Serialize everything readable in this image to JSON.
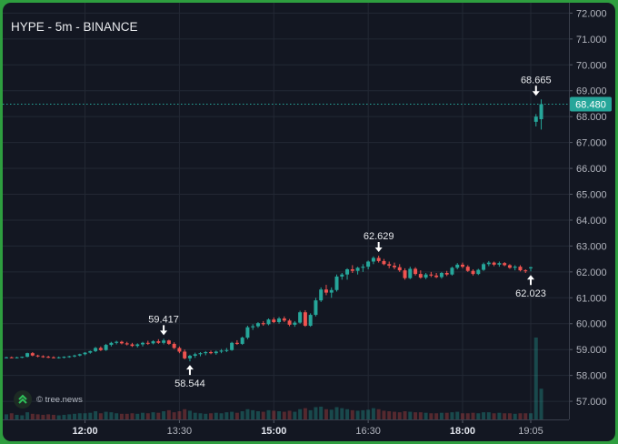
{
  "header": {
    "title": "HYPE - 5m - BINANCE"
  },
  "watermark": {
    "text": "© tree.news",
    "icon": "tree-news-logo-icon"
  },
  "colors": {
    "up": "#26a69a",
    "down": "#ef5350",
    "grid": "#232834",
    "axis_text": "#b2b5be",
    "price_line": "#26a69a",
    "background": "#131722"
  },
  "chart_data": {
    "type": "candlestick",
    "symbol": "HYPE",
    "interval": "5m",
    "exchange": "BINANCE",
    "ylim": [
      56.3,
      72.4
    ],
    "y_ticks": [
      "57.000",
      "58.000",
      "59.000",
      "60.000",
      "61.000",
      "62.000",
      "63.000",
      "64.000",
      "65.000",
      "66.000",
      "67.000",
      "68.000",
      "69.000",
      "70.000",
      "71.000",
      "72.000"
    ],
    "x_ticks": [
      {
        "label": "12:00",
        "index": 15,
        "bold": true
      },
      {
        "label": "13:30",
        "index": 33,
        "bold": false
      },
      {
        "label": "15:00",
        "index": 51,
        "bold": true
      },
      {
        "label": "16:30",
        "index": 69,
        "bold": false
      },
      {
        "label": "18:00",
        "index": 87,
        "bold": true
      },
      {
        "label": "19:05",
        "index": 100,
        "bold": false
      }
    ],
    "last_price": "68.480",
    "annotations": [
      {
        "label": "59.417",
        "index": 30,
        "direction": "down",
        "value": 59.417
      },
      {
        "label": "58.544",
        "index": 35,
        "direction": "up",
        "value": 58.544
      },
      {
        "label": "62.629",
        "index": 71,
        "direction": "down",
        "value": 62.629
      },
      {
        "label": "62.023",
        "index": 100,
        "direction": "up",
        "value": 62.023
      },
      {
        "label": "68.665",
        "index": 101,
        "direction": "down",
        "value": 68.665
      }
    ],
    "candles": [
      [
        58.7,
        58.72,
        58.66,
        58.7
      ],
      [
        58.7,
        58.73,
        58.67,
        58.69
      ],
      [
        58.69,
        58.72,
        58.66,
        58.7
      ],
      [
        58.7,
        58.73,
        58.67,
        58.72
      ],
      [
        58.72,
        58.88,
        58.7,
        58.86
      ],
      [
        58.86,
        58.9,
        58.74,
        58.77
      ],
      [
        58.77,
        58.8,
        58.7,
        58.74
      ],
      [
        58.74,
        58.78,
        58.68,
        58.72
      ],
      [
        58.72,
        58.76,
        58.67,
        58.7
      ],
      [
        58.7,
        58.74,
        58.66,
        58.69
      ],
      [
        58.69,
        58.73,
        58.65,
        58.7
      ],
      [
        58.7,
        58.74,
        58.66,
        58.72
      ],
      [
        58.72,
        58.76,
        58.68,
        58.74
      ],
      [
        58.74,
        58.8,
        58.7,
        58.77
      ],
      [
        58.77,
        58.84,
        58.74,
        58.82
      ],
      [
        58.82,
        58.9,
        58.78,
        58.88
      ],
      [
        58.88,
        58.96,
        58.84,
        58.94
      ],
      [
        58.94,
        59.1,
        58.9,
        59.06
      ],
      [
        59.06,
        59.12,
        58.94,
        58.98
      ],
      [
        58.98,
        59.22,
        58.95,
        59.18
      ],
      [
        59.18,
        59.3,
        59.12,
        59.26
      ],
      [
        59.26,
        59.34,
        59.2,
        59.3
      ],
      [
        59.3,
        59.34,
        59.2,
        59.24
      ],
      [
        59.24,
        59.3,
        59.16,
        59.2
      ],
      [
        59.2,
        59.26,
        59.1,
        59.14
      ],
      [
        59.14,
        59.24,
        59.08,
        59.2
      ],
      [
        59.2,
        59.3,
        59.12,
        59.26
      ],
      [
        59.26,
        59.34,
        59.18,
        59.24
      ],
      [
        59.24,
        59.36,
        59.2,
        59.32
      ],
      [
        59.32,
        59.4,
        59.22,
        59.26
      ],
      [
        59.26,
        59.417,
        59.2,
        59.35
      ],
      [
        59.35,
        59.38,
        59.18,
        59.22
      ],
      [
        59.22,
        59.28,
        59.02,
        59.06
      ],
      [
        59.06,
        59.12,
        58.86,
        58.92
      ],
      [
        58.92,
        59.0,
        58.62,
        58.66
      ],
      [
        58.66,
        58.8,
        58.544,
        58.76
      ],
      [
        58.76,
        58.88,
        58.68,
        58.82
      ],
      [
        58.82,
        58.9,
        58.74,
        58.86
      ],
      [
        58.86,
        58.94,
        58.78,
        58.9
      ],
      [
        58.9,
        58.96,
        58.82,
        58.86
      ],
      [
        58.86,
        58.96,
        58.8,
        58.92
      ],
      [
        58.92,
        59.02,
        58.86,
        58.96
      ],
      [
        58.96,
        59.06,
        58.9,
        58.98
      ],
      [
        58.98,
        59.3,
        58.95,
        59.26
      ],
      [
        59.26,
        59.36,
        59.18,
        59.22
      ],
      [
        59.22,
        59.5,
        59.18,
        59.46
      ],
      [
        59.46,
        59.92,
        59.4,
        59.86
      ],
      [
        59.86,
        59.98,
        59.76,
        59.9
      ],
      [
        59.9,
        60.06,
        59.84,
        60.02
      ],
      [
        60.02,
        60.1,
        59.92,
        59.98
      ],
      [
        59.98,
        60.2,
        59.94,
        60.16
      ],
      [
        60.16,
        60.24,
        60.02,
        60.06
      ],
      [
        60.06,
        60.26,
        60.0,
        60.2
      ],
      [
        60.2,
        60.28,
        60.06,
        60.12
      ],
      [
        60.12,
        60.18,
        59.9,
        59.96
      ],
      [
        59.96,
        60.1,
        59.88,
        60.04
      ],
      [
        60.04,
        60.5,
        60.0,
        60.44
      ],
      [
        60.44,
        60.52,
        59.88,
        59.92
      ],
      [
        59.92,
        60.4,
        59.88,
        60.34
      ],
      [
        60.34,
        61.0,
        60.28,
        60.9
      ],
      [
        60.9,
        61.4,
        60.84,
        61.32
      ],
      [
        61.32,
        61.5,
        61.1,
        61.2
      ],
      [
        61.2,
        61.4,
        61.0,
        61.3
      ],
      [
        61.3,
        61.9,
        61.24,
        61.82
      ],
      [
        61.82,
        61.96,
        61.7,
        61.9
      ],
      [
        61.9,
        62.14,
        61.7,
        62.1
      ],
      [
        62.1,
        62.26,
        61.96,
        62.04
      ],
      [
        62.04,
        62.2,
        61.9,
        62.16
      ],
      [
        62.16,
        62.3,
        62.0,
        62.2
      ],
      [
        62.2,
        62.44,
        62.1,
        62.4
      ],
      [
        62.4,
        62.6,
        62.3,
        62.54
      ],
      [
        62.54,
        62.629,
        62.36,
        62.42
      ],
      [
        62.42,
        62.5,
        62.26,
        62.3
      ],
      [
        62.3,
        62.4,
        62.14,
        62.24
      ],
      [
        62.24,
        62.36,
        62.1,
        62.18
      ],
      [
        62.18,
        62.3,
        62.0,
        62.06
      ],
      [
        62.06,
        62.14,
        61.7,
        61.76
      ],
      [
        61.76,
        62.2,
        61.72,
        62.12
      ],
      [
        62.12,
        62.18,
        61.86,
        61.92
      ],
      [
        61.92,
        62.06,
        61.74,
        61.78
      ],
      [
        61.78,
        61.96,
        61.72,
        61.9
      ],
      [
        61.9,
        62.0,
        61.8,
        61.86
      ],
      [
        61.86,
        61.96,
        61.76,
        61.8
      ],
      [
        61.8,
        62.0,
        61.74,
        61.96
      ],
      [
        61.96,
        62.04,
        61.84,
        61.9
      ],
      [
        61.9,
        62.2,
        61.86,
        62.16
      ],
      [
        62.16,
        62.34,
        62.1,
        62.28
      ],
      [
        62.28,
        62.36,
        62.14,
        62.2
      ],
      [
        62.2,
        62.26,
        62.0,
        62.04
      ],
      [
        62.04,
        62.1,
        61.86,
        61.92
      ],
      [
        61.92,
        62.12,
        61.88,
        62.08
      ],
      [
        62.08,
        62.36,
        62.04,
        62.3
      ],
      [
        62.3,
        62.42,
        62.22,
        62.36
      ],
      [
        62.36,
        62.4,
        62.22,
        62.28
      ],
      [
        62.28,
        62.4,
        62.2,
        62.34
      ],
      [
        62.34,
        62.38,
        62.22,
        62.26
      ],
      [
        62.26,
        62.3,
        62.12,
        62.16
      ],
      [
        62.16,
        62.26,
        62.06,
        62.2
      ],
      [
        62.2,
        62.26,
        62.02,
        62.06
      ],
      [
        62.06,
        62.1,
        61.96,
        62.04
      ],
      [
        62.14,
        62.2,
        62.023,
        62.18
      ],
      [
        67.8,
        68.1,
        67.62,
        68.0
      ],
      [
        67.9,
        68.665,
        67.5,
        68.48
      ]
    ],
    "volumes": [
      10,
      12,
      9,
      8,
      14,
      11,
      10,
      9,
      10,
      9,
      8,
      9,
      10,
      11,
      12,
      12,
      13,
      16,
      12,
      15,
      14,
      12,
      11,
      11,
      12,
      11,
      13,
      12,
      14,
      13,
      16,
      18,
      14,
      16,
      20,
      17,
      13,
      12,
      11,
      12,
      13,
      12,
      14,
      15,
      13,
      16,
      20,
      18,
      16,
      15,
      18,
      17,
      16,
      15,
      17,
      15,
      20,
      22,
      18,
      24,
      25,
      20,
      19,
      24,
      22,
      20,
      18,
      17,
      18,
      19,
      22,
      20,
      17,
      16,
      15,
      14,
      16,
      15,
      14,
      14,
      13,
      12,
      12,
      13,
      13,
      14,
      15,
      12,
      12,
      13,
      12,
      14,
      14,
      12,
      13,
      12,
      12,
      11,
      12,
      12,
      12,
      160,
      60
    ]
  }
}
